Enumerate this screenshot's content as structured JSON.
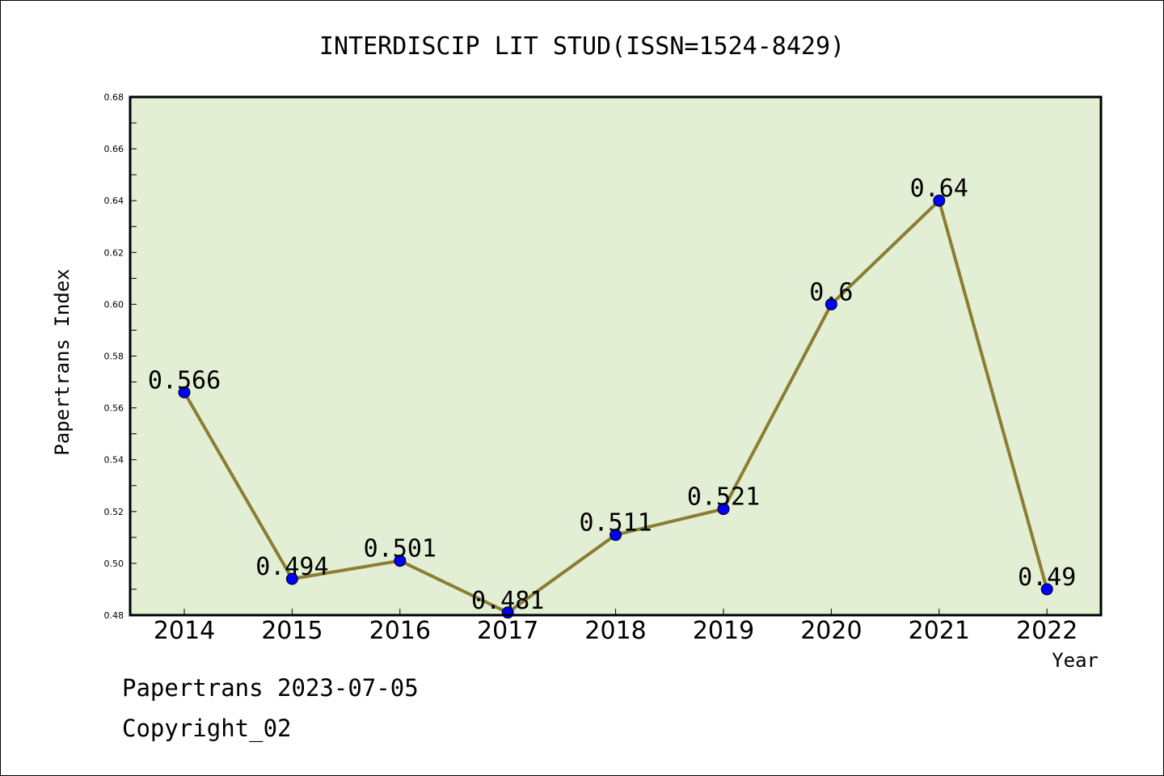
{
  "chart_data": {
    "type": "line",
    "title": "INTERDISCIP LIT STUD(ISSN=1524-8429)",
    "xlabel": "Year",
    "ylabel": "Papertrans Index",
    "categories": [
      "2014",
      "2015",
      "2016",
      "2017",
      "2018",
      "2019",
      "2020",
      "2021",
      "2022"
    ],
    "series": [
      {
        "values": [
          0.566,
          0.494,
          0.501,
          0.481,
          0.511,
          0.521,
          0.6,
          0.64,
          0.49
        ],
        "data_labels": [
          "0.566",
          "0.494",
          "0.501",
          "0.481",
          "0.511",
          "0.521",
          "0.6",
          "0.64",
          "0.49"
        ]
      }
    ],
    "ylim": [
      0.48,
      0.68
    ],
    "yticks": [
      "0.48",
      "0.50",
      "0.52",
      "0.54",
      "0.56",
      "0.58",
      "0.60",
      "0.62",
      "0.64",
      "0.66",
      "0.68"
    ],
    "grid": false,
    "colors": {
      "plot_background": "#e2efd4",
      "line": "#8b7d32",
      "marker": "#0000ff",
      "axes": "#000000"
    }
  },
  "footer": {
    "date_line": "Papertrans 2023-07-05",
    "copyright": "Copyright_02"
  }
}
